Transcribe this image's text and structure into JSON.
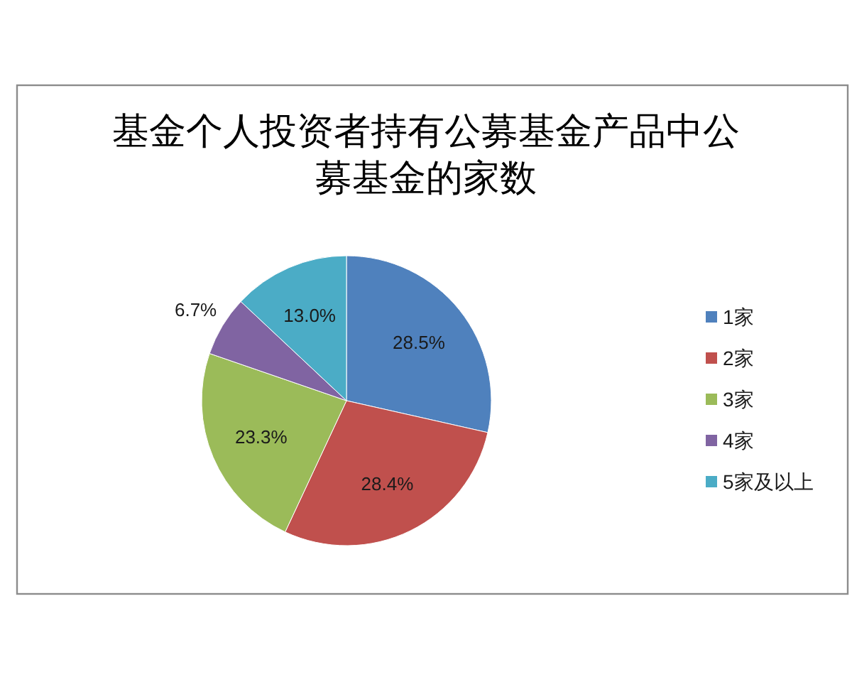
{
  "chart_data": {
    "type": "pie",
    "title": "基金个人投资者持有公募基金产品中公募基金的家数",
    "categories": [
      "1家",
      "2家",
      "3家",
      "4家",
      "5家及以上"
    ],
    "values": [
      28.5,
      28.4,
      23.3,
      6.7,
      13.0
    ],
    "value_labels": [
      "28.5%",
      "28.4%",
      "23.3%",
      "6.7%",
      "13.0%"
    ],
    "colors": [
      "#4f81bd",
      "#c0504d",
      "#9bbb59",
      "#8064a2",
      "#4bacc6"
    ],
    "legend": "right"
  }
}
